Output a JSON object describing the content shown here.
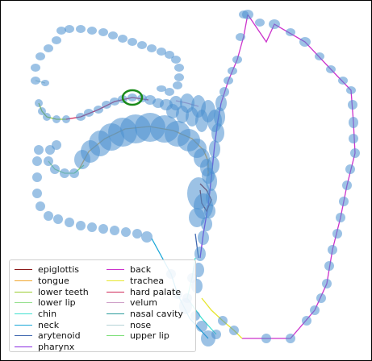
{
  "legend": {
    "items": [
      {
        "label": "epiglottis",
        "color": "#8b1a1a"
      },
      {
        "label": "back",
        "color": "#cc33cc"
      },
      {
        "label": "tongue",
        "color": "#f0a830"
      },
      {
        "label": "trachea",
        "color": "#e6e62e"
      },
      {
        "label": "lower teeth",
        "color": "#9acd32"
      },
      {
        "label": "hard palate",
        "color": "#d0285a"
      },
      {
        "label": "lower lip",
        "color": "#98e08f"
      },
      {
        "label": "velum",
        "color": "#cfa0c8"
      },
      {
        "label": "chin",
        "color": "#40e0d0"
      },
      {
        "label": "nasal cavity",
        "color": "#2b9c9c"
      },
      {
        "label": "neck",
        "color": "#1aa7d8"
      },
      {
        "label": "nose",
        "color": "#b6d3d6"
      },
      {
        "label": "arytenoid",
        "color": "#4169b0"
      },
      {
        "label": "upper lip",
        "color": "#7ee07a"
      },
      {
        "label": "pharynx",
        "color": "#8a2be2"
      }
    ]
  },
  "colors": {
    "marker_fill": "#4a8fcf",
    "highlight_ring": "#1a8a1a"
  }
}
